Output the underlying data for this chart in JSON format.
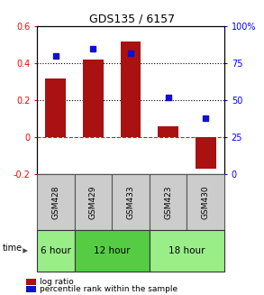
{
  "title": "GDS135 / 6157",
  "samples": [
    "GSM428",
    "GSM429",
    "GSM433",
    "GSM423",
    "GSM430"
  ],
  "log_ratios": [
    0.32,
    0.42,
    0.52,
    0.06,
    -0.17
  ],
  "percentile_ranks": [
    80,
    85,
    82,
    52,
    38
  ],
  "bar_color": "#aa1111",
  "dot_color": "#1111cc",
  "ylim_left": [
    -0.2,
    0.6
  ],
  "ylim_right": [
    0,
    100
  ],
  "yticks_left": [
    -0.2,
    0.0,
    0.2,
    0.4,
    0.6
  ],
  "ytick_labels_left": [
    "-0.2",
    "0",
    "0.2",
    "0.4",
    "0.6"
  ],
  "yticks_right": [
    0,
    25,
    50,
    75,
    100
  ],
  "ytick_labels_right": [
    "0",
    "25",
    "50",
    "75",
    "100%"
  ],
  "hlines_black_dotted": [
    0.2,
    0.4
  ],
  "hline_red_dashed": 0.0,
  "groups": [
    {
      "label": "6 hour",
      "samples": [
        "GSM428"
      ],
      "color": "#99ee88"
    },
    {
      "label": "12 hour",
      "samples": [
        "GSM429",
        "GSM433"
      ],
      "color": "#55cc44"
    },
    {
      "label": "18 hour",
      "samples": [
        "GSM423",
        "GSM430"
      ],
      "color": "#99ee88"
    }
  ],
  "time_label": "time",
  "legend_bar_color": "#aa1111",
  "legend_dot_color": "#1111cc",
  "legend_label_bar": "log ratio",
  "legend_label_dot": "percentile rank within the sample",
  "background_color": "#ffffff",
  "plot_bg_color": "#ffffff",
  "bar_width": 0.55,
  "sample_bg_color": "#cccccc"
}
